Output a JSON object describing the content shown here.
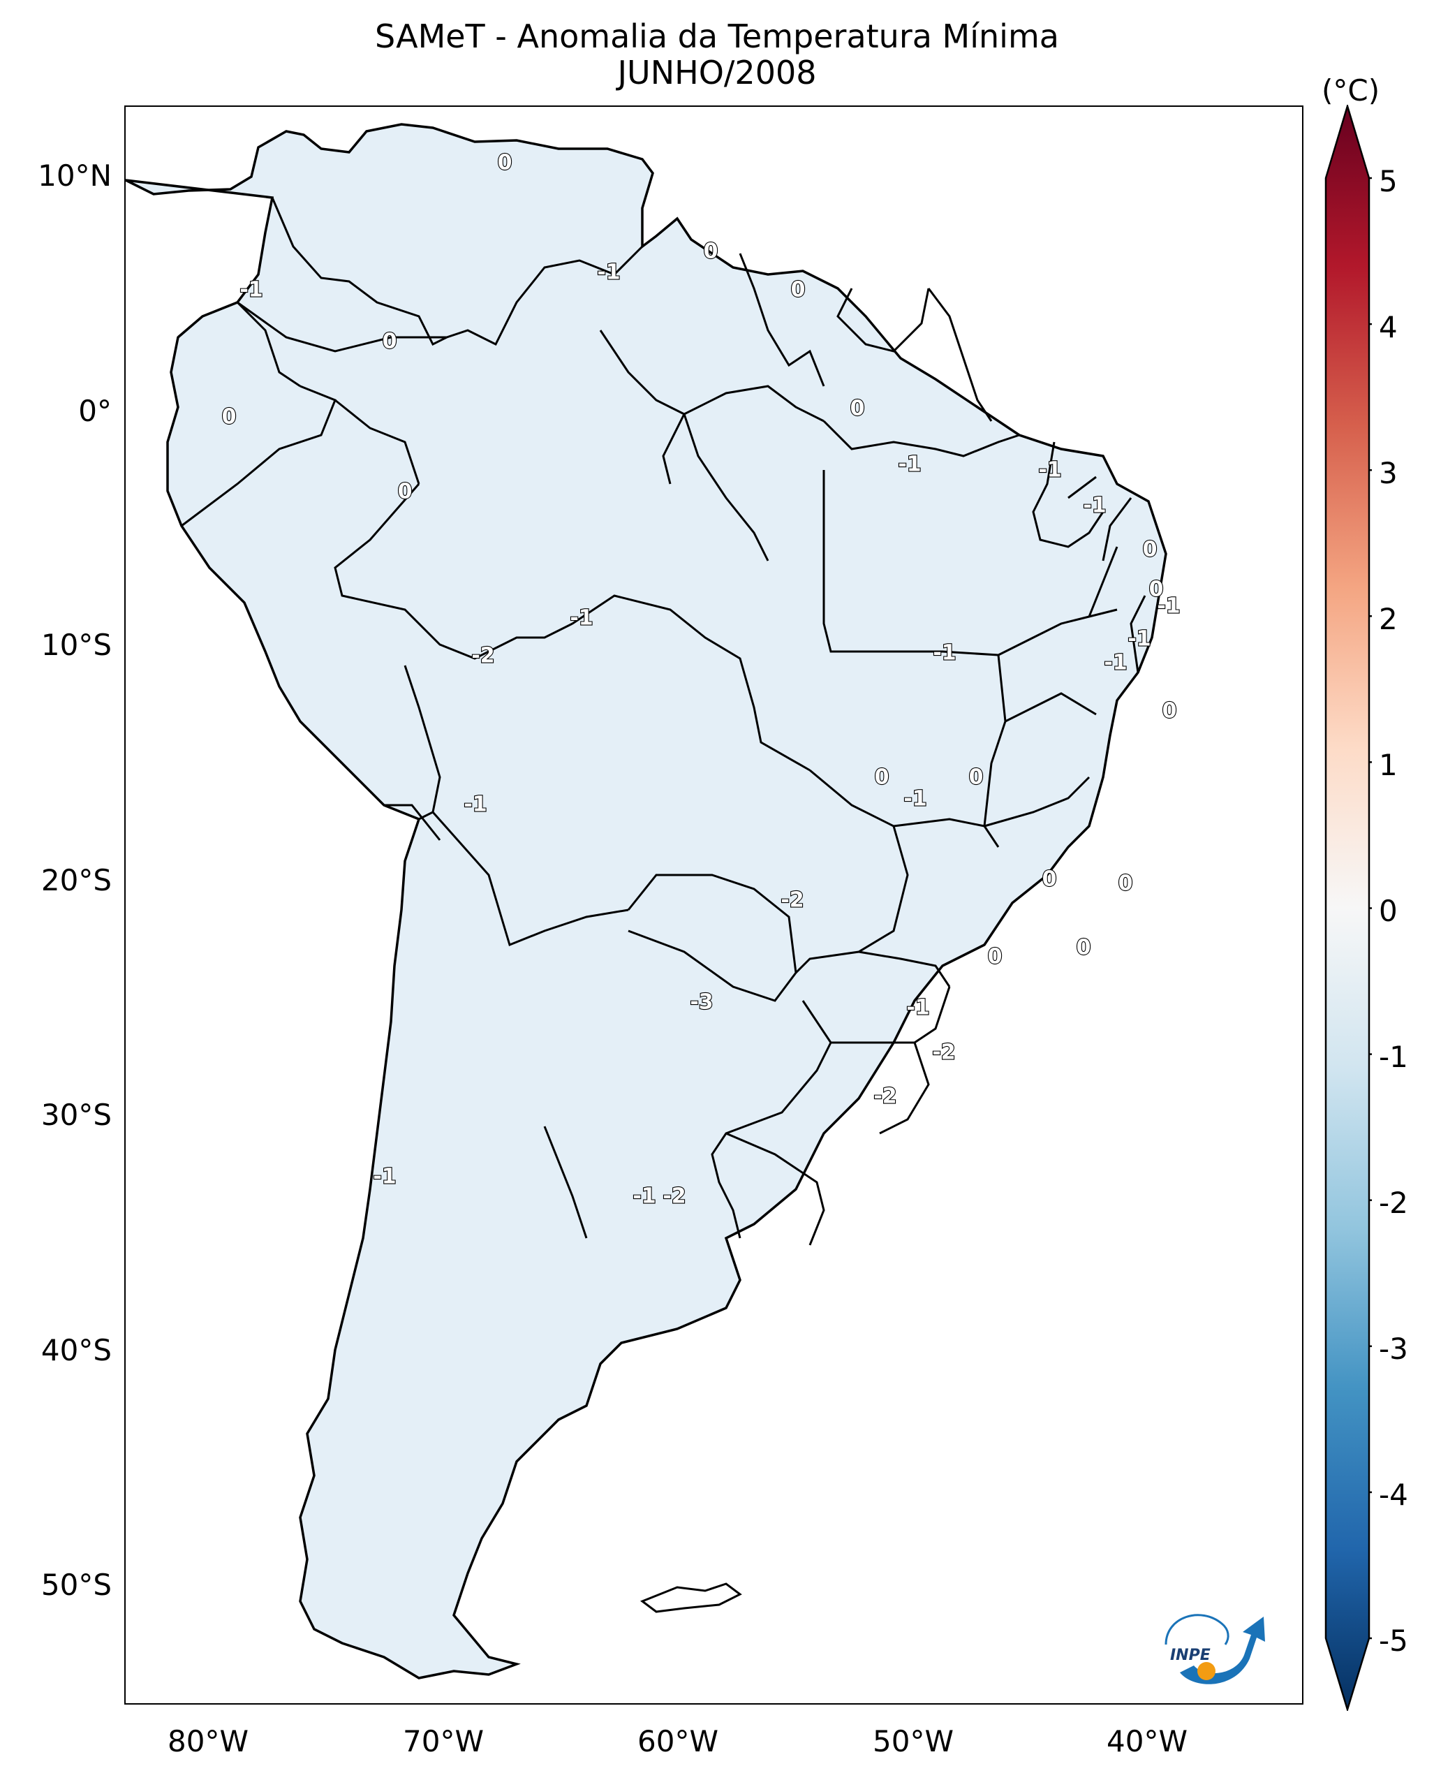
{
  "title": {
    "line1": "SAMeT - Anomalia da Temperatura Mínima",
    "line2": "JUNHO/2008"
  },
  "map": {
    "lat_ticks": [
      "10°N",
      "0°",
      "10°S",
      "20°S",
      "30°S",
      "40°S",
      "50°S"
    ],
    "lon_ticks": [
      "80°W",
      "70°W",
      "60°W",
      "50°W",
      "40°W"
    ],
    "contour_labels": [
      "0",
      "0",
      "-1",
      "0",
      "0",
      "-1",
      "0",
      "0",
      "0",
      "-1",
      "-1",
      "-1",
      "0",
      "0",
      "-1",
      "-1",
      "-1",
      "0",
      "-2",
      "-1",
      "-1",
      "0",
      "-1",
      "0",
      "-1",
      "0",
      "-2",
      "0",
      "0",
      "0",
      "-3",
      "-1",
      "-2",
      "-2",
      "-1",
      "-2",
      "-1"
    ]
  },
  "colorbar": {
    "unit": "(°C)",
    "ticks": [
      "5",
      "4",
      "3",
      "2",
      "1",
      "0",
      "-1",
      "-2",
      "-3",
      "-4",
      "-5"
    ],
    "colors": [
      "#67001f",
      "#b2182b",
      "#d6604d",
      "#f4a582",
      "#fddbc7",
      "#f7f7f7",
      "#d1e5f0",
      "#92c5de",
      "#4393c3",
      "#2166ac",
      "#053061"
    ]
  },
  "logo": {
    "text": "INPE"
  }
}
